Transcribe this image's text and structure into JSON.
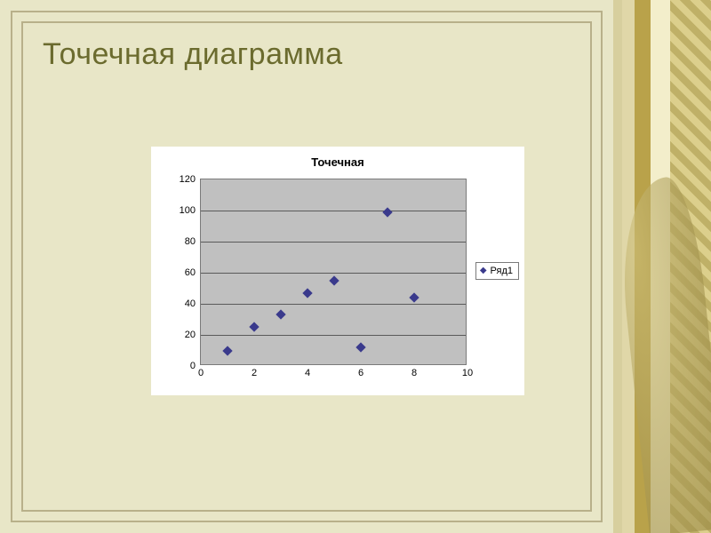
{
  "slide": {
    "title": "Точечная диаграмма",
    "title_fontsize": 34,
    "title_color": "#6b6b2e",
    "background_color": "#e8e6c7",
    "frame_color": "#b8b08a"
  },
  "chart": {
    "type": "scatter",
    "title": "Точечная",
    "title_fontsize": 13,
    "title_fontweight": "bold",
    "panel_background": "#ffffff",
    "plot_background": "#c0c0c0",
    "plot_border_color": "#7a7a7a",
    "grid_color": "#5a5a5a",
    "axis_label_fontsize": 11,
    "xlim": [
      0,
      10
    ],
    "ylim": [
      0,
      120
    ],
    "xtick_step": 2,
    "ytick_step": 20,
    "xticks": [
      0,
      2,
      4,
      6,
      8,
      10
    ],
    "yticks": [
      0,
      20,
      40,
      60,
      80,
      100,
      120
    ],
    "marker": {
      "shape": "diamond",
      "size": 8,
      "color": "#3a3a8c"
    },
    "series": [
      {
        "name": "Ряд1",
        "points": [
          {
            "x": 1,
            "y": 10
          },
          {
            "x": 2,
            "y": 25
          },
          {
            "x": 3,
            "y": 33
          },
          {
            "x": 4,
            "y": 47
          },
          {
            "x": 5,
            "y": 55
          },
          {
            "x": 6,
            "y": 12
          },
          {
            "x": 7,
            "y": 99
          },
          {
            "x": 8,
            "y": 44
          }
        ]
      }
    ],
    "legend": {
      "position": "right",
      "border_color": "#7a7a7a",
      "fontsize": 11
    }
  }
}
